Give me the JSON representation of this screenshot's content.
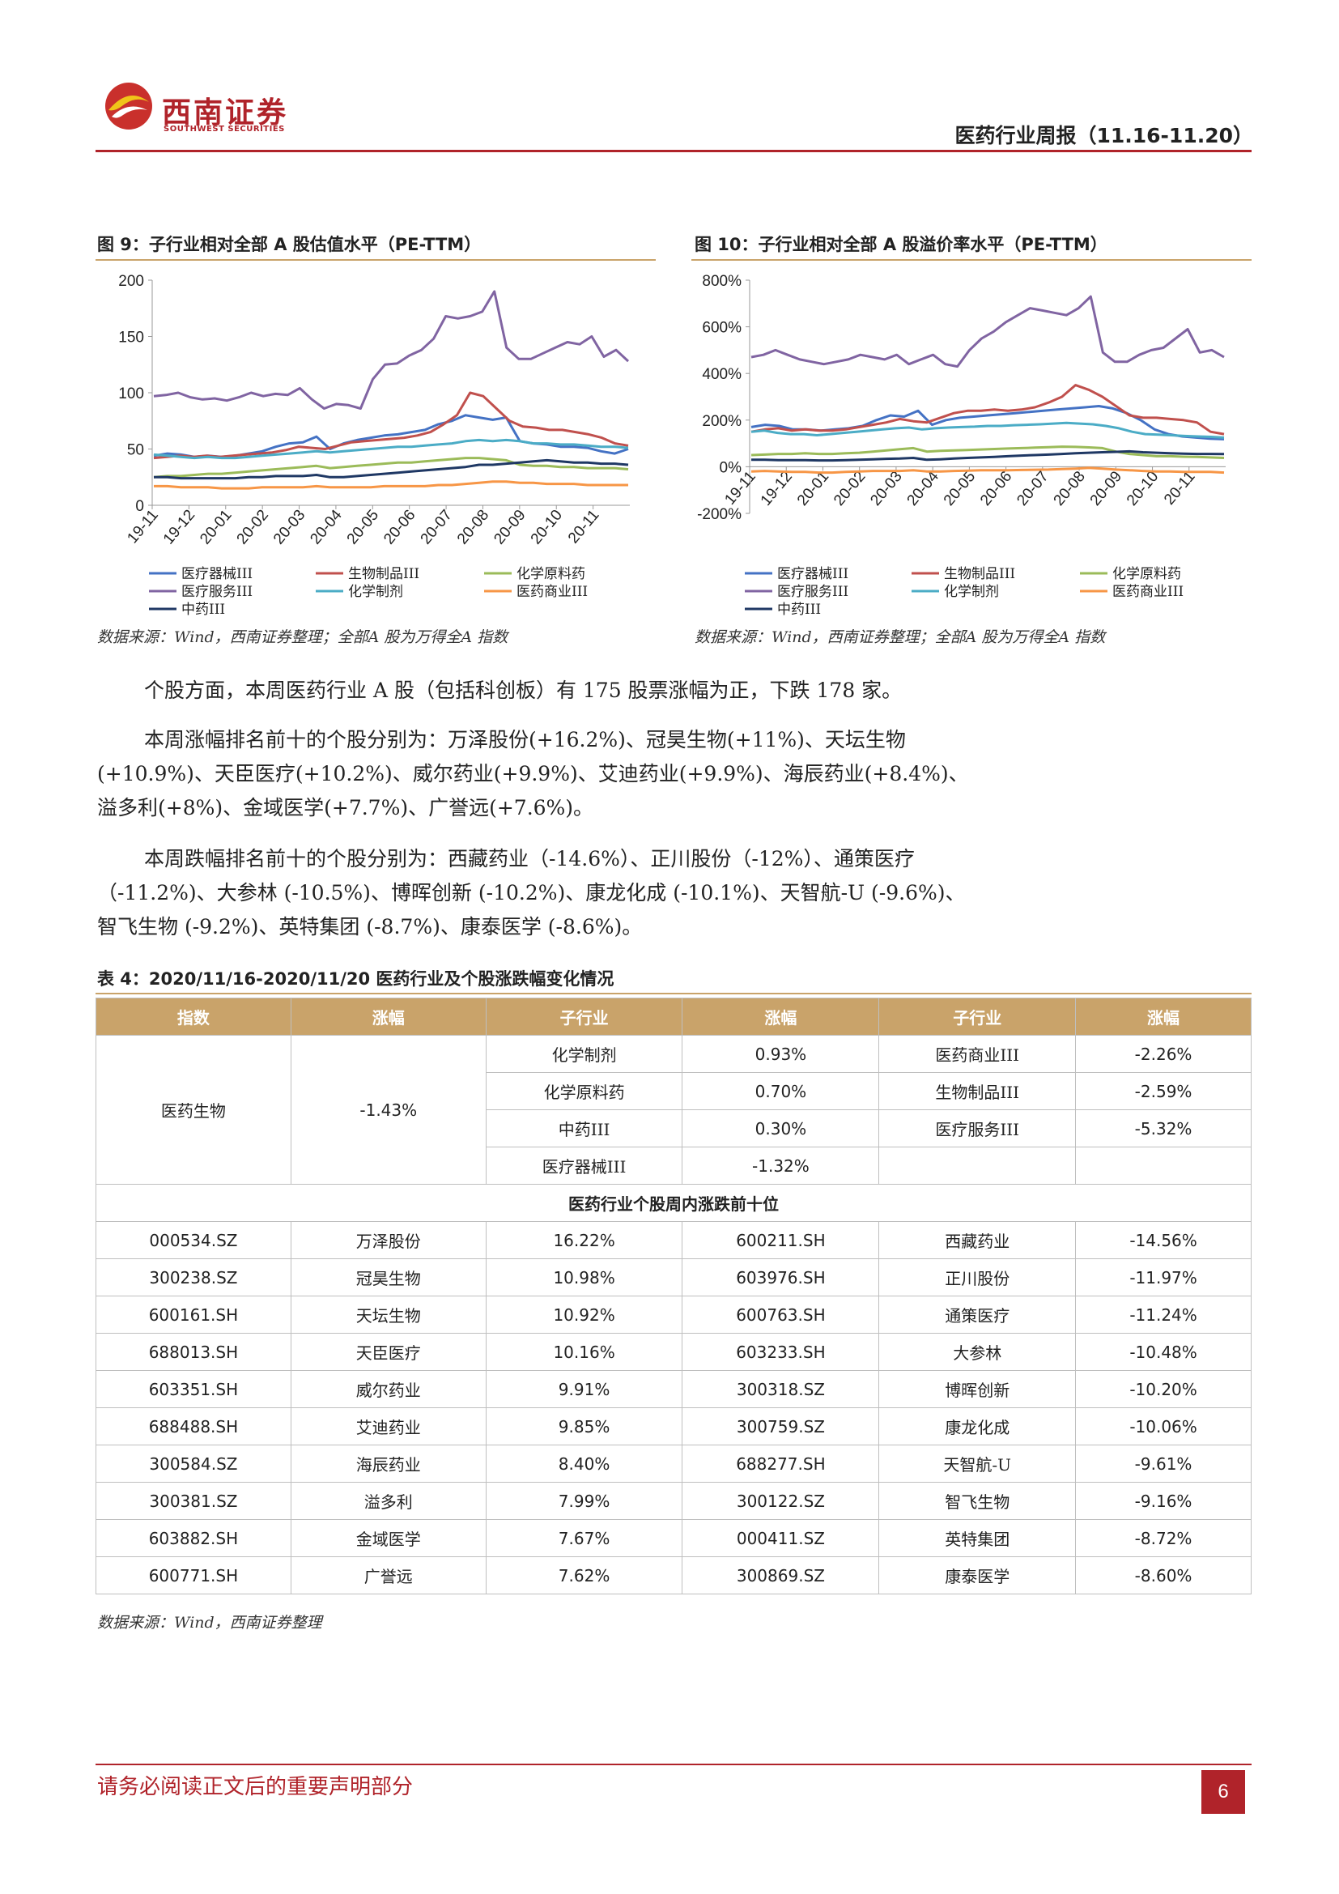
{
  "header": {
    "logo_cn": "西南证券",
    "logo_en": "SOUTHWEST SECURITIES",
    "report_title": "医药行业周报（11.16-11.20）"
  },
  "fig9": {
    "title": "图 9：子行业相对全部 A 股估值水平（PE-TTM）",
    "source": "数据来源：Wind，西南证券整理；全部A 股为万得全A 指数"
  },
  "fig10": {
    "title": "图 10：子行业相对全部 A 股溢价率水平（PE-TTM）",
    "source": "数据来源：Wind，西南证券整理；全部A 股为万得全A 指数"
  },
  "colors": {
    "医疗器械III": "#4472c4",
    "生物制品III": "#c0504d",
    "化学原料药": "#9bbb59",
    "医疗服务III": "#8064a2",
    "化学制剂": "#4bacc6",
    "医药商业III": "#f79646",
    "中药III": "#1f3864"
  },
  "chart_data": [
    {
      "type": "line",
      "x_ticks": [
        "19-11",
        "19-12",
        "20-01",
        "20-02",
        "20-03",
        "20-04",
        "20-05",
        "20-06",
        "20-07",
        "20-08",
        "20-09",
        "20-10",
        "20-11"
      ],
      "y_ticks": [
        "200",
        "150",
        "100",
        "50",
        "0"
      ],
      "ylim": [
        0,
        200
      ],
      "series": [
        {
          "name": "医疗器械III",
          "values": [
            44,
            46,
            45,
            43,
            44,
            43,
            44,
            46,
            48,
            52,
            55,
            56,
            61,
            50,
            55,
            58,
            60,
            62,
            63,
            65,
            67,
            72,
            75,
            80,
            78,
            76,
            78,
            57,
            55,
            54,
            52,
            52,
            51,
            48,
            46,
            50
          ]
        },
        {
          "name": "生物制品III",
          "values": [
            42,
            43,
            44,
            43,
            44,
            43,
            44,
            45,
            46,
            47,
            49,
            52,
            51,
            50,
            53,
            56,
            57,
            58,
            59,
            60,
            62,
            65,
            72,
            80,
            100,
            97,
            86,
            75,
            70,
            69,
            67,
            67,
            65,
            63,
            60,
            55,
            53
          ]
        },
        {
          "name": "化学原料药",
          "values": [
            25,
            26,
            26,
            27,
            28,
            28,
            29,
            30,
            31,
            32,
            33,
            34,
            35,
            33,
            34,
            35,
            36,
            37,
            38,
            38,
            39,
            40,
            41,
            42,
            42,
            41,
            40,
            36,
            35,
            35,
            34,
            34,
            33,
            33,
            33,
            32
          ]
        },
        {
          "name": "医疗服务III",
          "values": [
            97,
            98,
            100,
            96,
            94,
            95,
            93,
            96,
            100,
            97,
            99,
            98,
            104,
            94,
            86,
            90,
            89,
            86,
            112,
            125,
            126,
            133,
            138,
            148,
            168,
            166,
            168,
            172,
            190,
            140,
            130,
            130,
            135,
            140,
            145,
            143,
            150,
            132,
            138,
            128
          ]
        },
        {
          "name": "化学制剂",
          "values": [
            45,
            44,
            43,
            42,
            43,
            42,
            42,
            43,
            44,
            45,
            46,
            47,
            48,
            47,
            48,
            49,
            50,
            51,
            52,
            52,
            53,
            54,
            55,
            57,
            58,
            57,
            58,
            57,
            55,
            55,
            54,
            54,
            53,
            52,
            52,
            51
          ]
        },
        {
          "name": "医药商业III",
          "values": [
            17,
            17,
            16,
            16,
            16,
            15,
            15,
            15,
            16,
            16,
            16,
            16,
            17,
            16,
            16,
            16,
            16,
            17,
            17,
            17,
            17,
            18,
            18,
            19,
            20,
            21,
            21,
            20,
            20,
            19,
            19,
            19,
            18,
            18,
            18,
            18
          ]
        },
        {
          "name": "中药III",
          "values": [
            25,
            25,
            24,
            24,
            24,
            24,
            24,
            25,
            25,
            26,
            26,
            26,
            27,
            25,
            25,
            26,
            27,
            28,
            29,
            30,
            31,
            32,
            33,
            34,
            36,
            36,
            37,
            38,
            39,
            40,
            39,
            38,
            38,
            37,
            37,
            36
          ]
        }
      ]
    },
    {
      "type": "line",
      "x_ticks": [
        "19-11",
        "19-12",
        "20-01",
        "20-02",
        "20-03",
        "20-04",
        "20-05",
        "20-06",
        "20-07",
        "20-08",
        "20-09",
        "20-10",
        "20-11"
      ],
      "y_ticks": [
        "800%",
        "600%",
        "400%",
        "200%",
        "0%",
        "-200%"
      ],
      "ylim": [
        -200,
        800
      ],
      "series": [
        {
          "name": "医疗器械III",
          "values": [
            170,
            180,
            175,
            160,
            160,
            155,
            160,
            165,
            175,
            200,
            220,
            215,
            240,
            180,
            200,
            210,
            215,
            220,
            225,
            230,
            235,
            240,
            245,
            250,
            255,
            260,
            250,
            230,
            200,
            160,
            140,
            130,
            125,
            120,
            118
          ]
        },
        {
          "name": "生物制品III",
          "values": [
            150,
            160,
            165,
            155,
            160,
            155,
            155,
            160,
            170,
            180,
            190,
            205,
            195,
            190,
            210,
            230,
            240,
            240,
            245,
            240,
            245,
            255,
            275,
            300,
            350,
            330,
            300,
            260,
            220,
            210,
            210,
            205,
            200,
            190,
            150,
            140
          ]
        },
        {
          "name": "化学原料药",
          "values": [
            50,
            52,
            55,
            55,
            58,
            55,
            55,
            58,
            60,
            65,
            70,
            75,
            80,
            65,
            68,
            70,
            72,
            74,
            76,
            78,
            80,
            82,
            84,
            86,
            85,
            83,
            80,
            65,
            55,
            50,
            45,
            45,
            43,
            42,
            40,
            38
          ]
        },
        {
          "name": "医疗服务III",
          "values": [
            470,
            480,
            500,
            480,
            460,
            450,
            440,
            450,
            460,
            480,
            470,
            460,
            480,
            440,
            460,
            480,
            440,
            430,
            500,
            550,
            580,
            620,
            650,
            680,
            670,
            660,
            650,
            680,
            730,
            490,
            450,
            450,
            480,
            500,
            510,
            550,
            590,
            490,
            500,
            470
          ]
        },
        {
          "name": "化学制剂",
          "values": [
            150,
            155,
            145,
            140,
            140,
            135,
            140,
            145,
            150,
            155,
            160,
            165,
            168,
            160,
            165,
            168,
            170,
            172,
            175,
            175,
            178,
            180,
            182,
            185,
            188,
            185,
            182,
            175,
            165,
            150,
            140,
            138,
            135,
            132,
            130,
            128,
            125
          ]
        },
        {
          "name": "医药商业III",
          "values": [
            -20,
            -18,
            -20,
            -22,
            -22,
            -25,
            -25,
            -22,
            -20,
            -18,
            -18,
            -18,
            -15,
            -20,
            -20,
            -18,
            -17,
            -15,
            -15,
            -15,
            -14,
            -13,
            -12,
            -10,
            -8,
            -5,
            -8,
            -12,
            -15,
            -18,
            -20,
            -20,
            -22,
            -22,
            -22,
            -25
          ]
        },
        {
          "name": "中药III",
          "values": [
            30,
            30,
            28,
            28,
            28,
            27,
            27,
            28,
            30,
            32,
            34,
            35,
            38,
            30,
            32,
            35,
            38,
            40,
            42,
            45,
            48,
            50,
            52,
            55,
            58,
            60,
            62,
            64,
            66,
            62,
            60,
            58,
            56,
            55,
            55,
            54
          ]
        }
      ]
    }
  ],
  "paragraphs": {
    "p1": "个股方面，本周医药行业 A 股（包括科创板）有 175 股票涨幅为正，下跌 178 家。",
    "p2_l1": "本周涨幅排名前十的个股分别为：万泽股份(+16.2%)、冠昊生物(+11%)、天坛生物",
    "p2_l2": "(+10.9%)、天臣医疗(+10.2%)、威尔药业(+9.9%)、艾迪药业(+9.9%)、海辰药业(+8.4%)、",
    "p2_l3": "溢多利(+8%)、金域医学(+7.7%)、广誉远(+7.6%)。",
    "p3_l1": "本周跌幅排名前十的个股分别为：西藏药业（-14.6%）、正川股份（-12%）、通策医疗",
    "p3_l2": "（-11.2%)、大参林 (-10.5%)、博晖创新 (-10.2%)、康龙化成 (-10.1%)、天智航-U (-9.6%)、",
    "p3_l3": "智飞生物 (-9.2%)、英特集团 (-8.7%)、康泰医学 (-8.6%)。"
  },
  "table": {
    "title": "表 4：2020/11/16-2020/11/20 医药行业及个股涨跌幅变化情况",
    "headers": [
      "指数",
      "涨幅",
      "子行业",
      "涨幅",
      "子行业",
      "涨幅"
    ],
    "index_name": "医药生物",
    "index_change": "-1.43%",
    "sub_rows": [
      {
        "a": "化学制剂",
        "a_chg": "0.93%",
        "b": "医药商业III",
        "b_chg": "-2.26%"
      },
      {
        "a": "化学原料药",
        "a_chg": "0.70%",
        "b": "生物制品III",
        "b_chg": "-2.59%"
      },
      {
        "a": "中药III",
        "a_chg": "0.30%",
        "b": "医疗服务III",
        "b_chg": "-5.32%"
      },
      {
        "a": "医疗器械III",
        "a_chg": "-1.32%",
        "b": "",
        "b_chg": ""
      }
    ],
    "section_title": "医药行业个股周内涨跌前十位",
    "stock_rows": [
      {
        "c1": "000534.SZ",
        "n1": "万泽股份",
        "p1": "16.22%",
        "c2": "600211.SH",
        "n2": "西藏药业",
        "p2": "-14.56%"
      },
      {
        "c1": "300238.SZ",
        "n1": "冠昊生物",
        "p1": "10.98%",
        "c2": "603976.SH",
        "n2": "正川股份",
        "p2": "-11.97%"
      },
      {
        "c1": "600161.SH",
        "n1": "天坛生物",
        "p1": "10.92%",
        "c2": "600763.SH",
        "n2": "通策医疗",
        "p2": "-11.24%"
      },
      {
        "c1": "688013.SH",
        "n1": "天臣医疗",
        "p1": "10.16%",
        "c2": "603233.SH",
        "n2": "大参林",
        "p2": "-10.48%"
      },
      {
        "c1": "603351.SH",
        "n1": "威尔药业",
        "p1": "9.91%",
        "c2": "300318.SZ",
        "n2": "博晖创新",
        "p2": "-10.20%"
      },
      {
        "c1": "688488.SH",
        "n1": "艾迪药业",
        "p1": "9.85%",
        "c2": "300759.SZ",
        "n2": "康龙化成",
        "p2": "-10.06%"
      },
      {
        "c1": "300584.SZ",
        "n1": "海辰药业",
        "p1": "8.40%",
        "c2": "688277.SH",
        "n2": "天智航-U",
        "p2": "-9.61%"
      },
      {
        "c1": "300381.SZ",
        "n1": "溢多利",
        "p1": "7.99%",
        "c2": "300122.SZ",
        "n2": "智飞生物",
        "p2": "-9.16%"
      },
      {
        "c1": "603882.SH",
        "n1": "金域医学",
        "p1": "7.67%",
        "c2": "000411.SZ",
        "n2": "英特集团",
        "p2": "-8.72%"
      },
      {
        "c1": "600771.SH",
        "n1": "广誉远",
        "p1": "7.62%",
        "c2": "300869.SZ",
        "n2": "康泰医学",
        "p2": "-8.60%"
      }
    ],
    "source": "数据来源：Wind，西南证券整理"
  },
  "footer": {
    "note": "请务必阅读正文后的重要声明部分",
    "page": "6"
  }
}
